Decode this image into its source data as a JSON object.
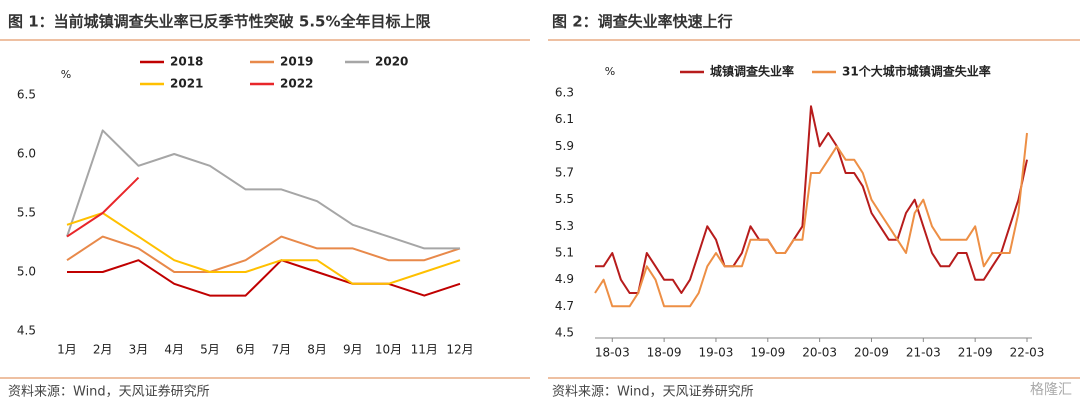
{
  "chart_data": [
    {
      "type": "line",
      "title": "图 1：当前城镇调查失业率已反季节性突破 5.5%全年目标上限",
      "y_unit": "%",
      "categories": [
        "1月",
        "2月",
        "3月",
        "4月",
        "5月",
        "6月",
        "7月",
        "8月",
        "9月",
        "10月",
        "11月",
        "12月"
      ],
      "series": [
        {
          "name": "2018",
          "color": "#c00000",
          "values": [
            5.0,
            5.0,
            5.1,
            4.9,
            4.8,
            4.8,
            5.1,
            5.0,
            4.9,
            4.9,
            4.8,
            4.9
          ]
        },
        {
          "name": "2019",
          "color": "#e8894a",
          "values": [
            5.1,
            5.3,
            5.2,
            5.0,
            5.0,
            5.1,
            5.3,
            5.2,
            5.2,
            5.1,
            5.1,
            5.2
          ]
        },
        {
          "name": "2020",
          "color": "#a6a6a6",
          "values": [
            5.3,
            6.2,
            5.9,
            6.0,
            5.9,
            5.7,
            5.7,
            5.6,
            5.4,
            5.3,
            5.2,
            5.2
          ]
        },
        {
          "name": "2021",
          "color": "#ffc000",
          "values": [
            5.4,
            5.5,
            5.3,
            5.1,
            5.0,
            5.0,
            5.1,
            5.1,
            4.9,
            4.9,
            5.0,
            5.1
          ]
        },
        {
          "name": "2022",
          "color": "#e8262a",
          "values": [
            5.3,
            5.5,
            5.8,
            null,
            null,
            null,
            null,
            null,
            null,
            null,
            null,
            null
          ]
        }
      ],
      "ylim": [
        4.5,
        6.5
      ],
      "yticks": [
        4.5,
        {
          "value": 5,
          "label": "5.0"
        },
        5.5,
        {
          "value": 6,
          "label": "6.0"
        },
        6.5
      ],
      "grid": false,
      "source": "资料来源：Wind，天风证券研究所"
    },
    {
      "type": "line",
      "title": "图 2：调查失业率快速上行",
      "y_unit": "%",
      "categories": [
        null,
        null,
        "18-03",
        null,
        null,
        null,
        null,
        null,
        "18-09",
        null,
        null,
        null,
        null,
        null,
        "19-03",
        null,
        null,
        null,
        null,
        null,
        "19-09",
        null,
        null,
        null,
        null,
        null,
        "20-03",
        null,
        null,
        null,
        null,
        null,
        "20-09",
        null,
        null,
        null,
        null,
        null,
        "21-03",
        null,
        null,
        null,
        null,
        null,
        "21-09",
        null,
        null,
        null,
        null,
        null,
        "22-03"
      ],
      "series": [
        {
          "name": "城镇调查失业率",
          "color": "#b71c1c",
          "values": [
            5.0,
            5.0,
            5.1,
            4.9,
            4.8,
            4.8,
            5.1,
            5.0,
            4.9,
            4.9,
            4.8,
            4.9,
            5.1,
            5.3,
            5.2,
            5.0,
            5.0,
            5.1,
            5.3,
            5.2,
            5.2,
            5.1,
            5.1,
            5.2,
            5.3,
            6.2,
            5.9,
            6.0,
            5.9,
            5.7,
            5.7,
            5.6,
            5.4,
            5.3,
            5.2,
            5.2,
            5.4,
            5.5,
            5.3,
            5.1,
            5.0,
            5.0,
            5.1,
            5.1,
            4.9,
            4.9,
            5.0,
            5.1,
            5.3,
            5.5,
            5.8
          ]
        },
        {
          "name": "31个大城市城镇调查失业率",
          "color": "#ed8f45",
          "values": [
            4.8,
            4.9,
            4.7,
            4.7,
            4.7,
            4.8,
            5.0,
            4.9,
            4.7,
            4.7,
            4.7,
            4.7,
            4.8,
            5.0,
            5.1,
            5.0,
            5.0,
            5.0,
            5.2,
            5.2,
            5.2,
            5.1,
            5.1,
            5.2,
            5.2,
            5.7,
            5.7,
            5.8,
            5.9,
            5.8,
            5.8,
            5.7,
            5.5,
            5.4,
            5.3,
            5.2,
            5.1,
            5.4,
            5.5,
            5.3,
            5.2,
            5.2,
            5.2,
            5.2,
            5.3,
            5.0,
            5.1,
            5.1,
            5.1,
            5.4,
            6.0
          ]
        }
      ],
      "ylim": [
        4.5,
        6.3
      ],
      "yticks": [
        4.5,
        4.7,
        4.9,
        5.1,
        5.3,
        5.5,
        5.7,
        5.9,
        6.1,
        6.3
      ],
      "grid": false,
      "source": "资料来源：Wind，天风证券研究所"
    }
  ],
  "watermark": "格隆汇"
}
